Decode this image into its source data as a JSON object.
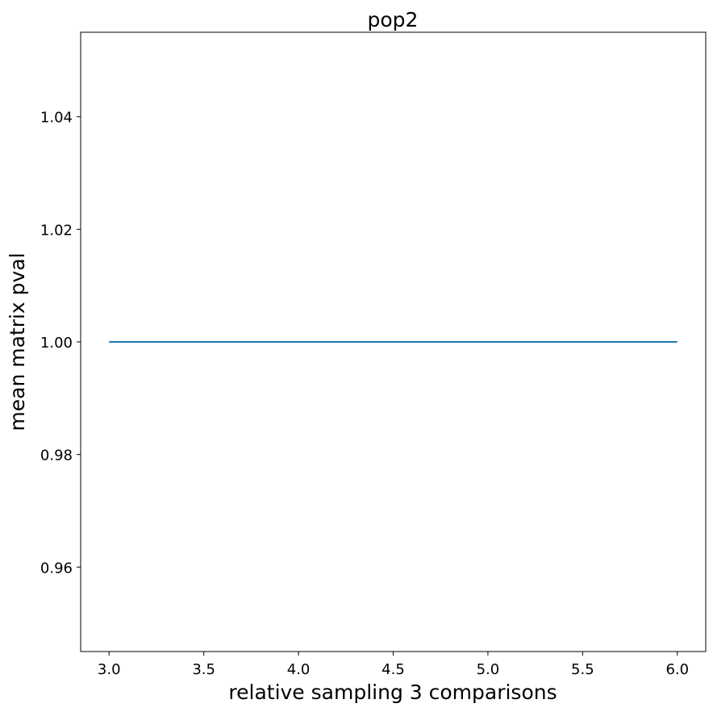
{
  "chart_data": {
    "type": "line",
    "title": "pop2",
    "xlabel": "relative sampling 3 comparisons",
    "ylabel": "mean matrix pval",
    "xlim": [
      2.85,
      6.15
    ],
    "ylim": [
      0.945,
      1.055
    ],
    "xticks": [
      3.0,
      3.5,
      4.0,
      4.5,
      5.0,
      5.5,
      6.0
    ],
    "xtick_labels": [
      "3.0",
      "3.5",
      "4.0",
      "4.5",
      "5.0",
      "5.5",
      "6.0"
    ],
    "yticks": [
      0.96,
      0.98,
      1.0,
      1.02,
      1.04
    ],
    "ytick_labels": [
      "0.96",
      "0.98",
      "1.00",
      "1.02",
      "1.04"
    ],
    "grid": false,
    "series": [
      {
        "x": [
          3.0,
          4.0,
          5.0,
          6.0
        ],
        "y": [
          1.0,
          1.0,
          1.0,
          1.0
        ],
        "color": "#1f77b4"
      }
    ]
  }
}
